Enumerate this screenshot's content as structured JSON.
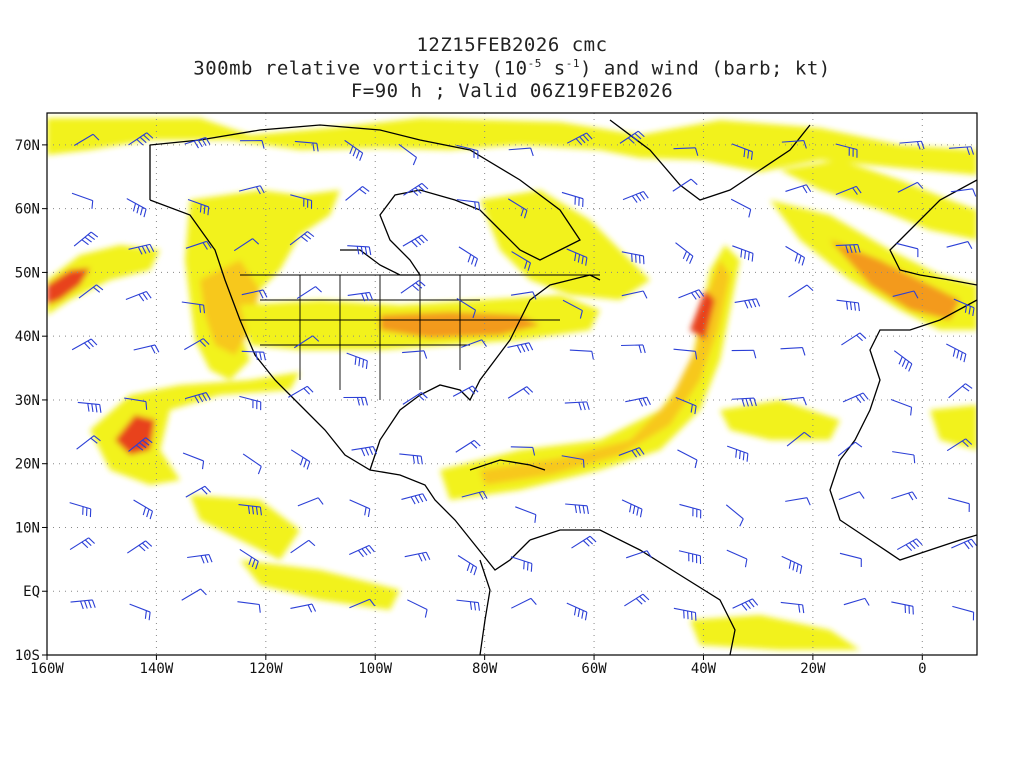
{
  "header": {
    "line1": "12Z15FEB2026 cmc",
    "line2_pre": "300mb relative vorticity (10",
    "line2_exp1": "-5",
    "line2_mid": " s",
    "line2_exp2": "-1",
    "line2_post": ") and wind (barb; kt)",
    "line3": "F=90 h ; Valid 06Z19FEB2026"
  },
  "map": {
    "lon_range": [
      -160,
      10
    ],
    "lat_range": [
      -10,
      75
    ],
    "lon_ticks": [
      {
        "value": -160,
        "label": "160W"
      },
      {
        "value": -140,
        "label": "140W"
      },
      {
        "value": -120,
        "label": "120W"
      },
      {
        "value": -100,
        "label": "100W"
      },
      {
        "value": -80,
        "label": "80W"
      },
      {
        "value": -60,
        "label": "60W"
      },
      {
        "value": -40,
        "label": "40W"
      },
      {
        "value": -20,
        "label": "20W"
      },
      {
        "value": 0,
        "label": "0"
      }
    ],
    "lat_ticks": [
      {
        "value": -10,
        "label": "10S"
      },
      {
        "value": 0,
        "label": "EQ"
      },
      {
        "value": 10,
        "label": "10N"
      },
      {
        "value": 20,
        "label": "20N"
      },
      {
        "value": 30,
        "label": "30N"
      },
      {
        "value": 40,
        "label": "40N"
      },
      {
        "value": 50,
        "label": "50N"
      },
      {
        "value": 60,
        "label": "60N"
      },
      {
        "value": 70,
        "label": "70N"
      }
    ],
    "colors": {
      "vort_low": "#f2f21a",
      "vort_mid": "#f7c81e",
      "vort_high": "#f39a1c",
      "vort_max": "#e8421a",
      "barbs": "#2b3fd6",
      "coast": "#000000",
      "grid": "#888888"
    }
  }
}
